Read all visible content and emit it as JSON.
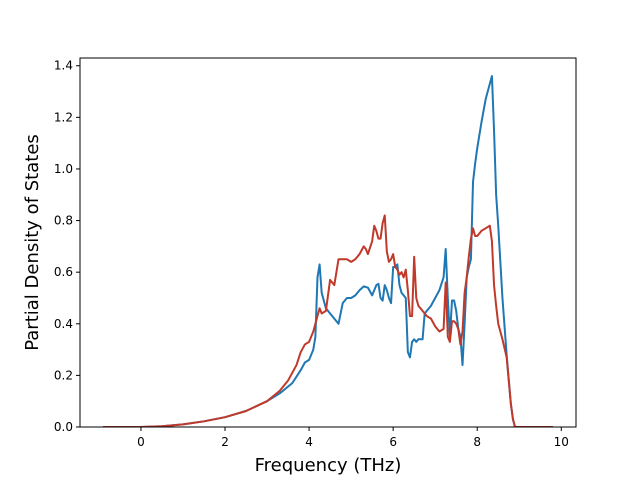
{
  "chart_data": {
    "type": "line",
    "title": "",
    "xlabel": "Frequency (THz)",
    "ylabel": "Partial Density of States",
    "xlim": [
      -1.45,
      10.35
    ],
    "ylim": [
      0.0,
      1.43
    ],
    "xticks": [
      0,
      2,
      4,
      6,
      8,
      10
    ],
    "yticks": [
      0.0,
      0.2,
      0.4,
      0.6,
      0.8,
      1.0,
      1.2,
      1.4
    ],
    "xtick_labels": [
      "0",
      "2",
      "4",
      "6",
      "8",
      "10"
    ],
    "ytick_labels": [
      "0.0",
      "0.2",
      "0.4",
      "0.6",
      "0.8",
      "1.0",
      "1.2",
      "1.4"
    ],
    "grid": false,
    "legend": "none",
    "series": [
      {
        "color": "#1f77b4",
        "x": [
          -0.9,
          0.0,
          0.5,
          1.0,
          1.5,
          2.0,
          2.5,
          3.0,
          3.3,
          3.6,
          3.8,
          3.9,
          4.0,
          4.1,
          4.15,
          4.2,
          4.25,
          4.3,
          4.4,
          4.5,
          4.6,
          4.7,
          4.8,
          4.9,
          5.0,
          5.1,
          5.2,
          5.3,
          5.4,
          5.5,
          5.6,
          5.65,
          5.7,
          5.75,
          5.8,
          5.85,
          5.9,
          5.95,
          6.0,
          6.05,
          6.1,
          6.15,
          6.2,
          6.25,
          6.3,
          6.35,
          6.4,
          6.45,
          6.5,
          6.55,
          6.6,
          6.7,
          6.75,
          6.8,
          6.9,
          7.0,
          7.1,
          7.2,
          7.25,
          7.3,
          7.35,
          7.4,
          7.45,
          7.5,
          7.55,
          7.6,
          7.65,
          7.7,
          7.75,
          7.8,
          7.85,
          7.9,
          7.95,
          8.0,
          8.1,
          8.2,
          8.3,
          8.35,
          8.4,
          8.45,
          8.5,
          8.6,
          8.7,
          8.8,
          8.85,
          8.9,
          8.95,
          9.0,
          9.5,
          9.8
        ],
        "y": [
          0.0,
          0.0,
          0.003,
          0.01,
          0.022,
          0.038,
          0.062,
          0.1,
          0.13,
          0.17,
          0.22,
          0.25,
          0.26,
          0.3,
          0.35,
          0.58,
          0.63,
          0.52,
          0.46,
          0.44,
          0.42,
          0.4,
          0.48,
          0.5,
          0.5,
          0.51,
          0.53,
          0.545,
          0.54,
          0.51,
          0.55,
          0.555,
          0.5,
          0.49,
          0.55,
          0.53,
          0.5,
          0.48,
          0.62,
          0.62,
          0.63,
          0.55,
          0.52,
          0.51,
          0.5,
          0.29,
          0.27,
          0.33,
          0.34,
          0.33,
          0.34,
          0.34,
          0.44,
          0.45,
          0.47,
          0.5,
          0.53,
          0.58,
          0.69,
          0.5,
          0.35,
          0.49,
          0.49,
          0.45,
          0.38,
          0.35,
          0.24,
          0.4,
          0.58,
          0.62,
          0.65,
          0.95,
          1.02,
          1.08,
          1.18,
          1.27,
          1.33,
          1.36,
          1.15,
          0.9,
          0.78,
          0.5,
          0.28,
          0.09,
          0.03,
          0.0,
          0.0,
          0.0,
          0.0,
          0.0
        ]
      },
      {
        "color": "#c0392b",
        "x": [
          -0.9,
          0.0,
          0.5,
          1.0,
          1.5,
          2.0,
          2.5,
          3.0,
          3.3,
          3.5,
          3.7,
          3.8,
          3.9,
          4.0,
          4.1,
          4.2,
          4.25,
          4.3,
          4.4,
          4.5,
          4.55,
          4.6,
          4.7,
          4.8,
          4.9,
          5.0,
          5.1,
          5.2,
          5.3,
          5.35,
          5.4,
          5.5,
          5.55,
          5.6,
          5.65,
          5.7,
          5.75,
          5.8,
          5.85,
          5.9,
          5.95,
          6.0,
          6.05,
          6.1,
          6.15,
          6.2,
          6.25,
          6.3,
          6.35,
          6.4,
          6.45,
          6.5,
          6.55,
          6.6,
          6.7,
          6.8,
          6.9,
          7.0,
          7.1,
          7.2,
          7.25,
          7.3,
          7.35,
          7.4,
          7.45,
          7.5,
          7.55,
          7.6,
          7.65,
          7.7,
          7.75,
          7.8,
          7.85,
          7.9,
          7.95,
          8.0,
          8.05,
          8.1,
          8.2,
          8.3,
          8.35,
          8.4,
          8.45,
          8.5,
          8.6,
          8.7,
          8.8,
          8.85,
          8.9,
          8.95,
          9.0,
          9.5,
          9.8
        ],
        "y": [
          0.0,
          0.0,
          0.003,
          0.01,
          0.022,
          0.038,
          0.062,
          0.1,
          0.14,
          0.18,
          0.24,
          0.29,
          0.32,
          0.33,
          0.37,
          0.43,
          0.46,
          0.44,
          0.45,
          0.57,
          0.56,
          0.55,
          0.65,
          0.65,
          0.65,
          0.64,
          0.65,
          0.67,
          0.7,
          0.69,
          0.67,
          0.72,
          0.78,
          0.76,
          0.73,
          0.73,
          0.79,
          0.82,
          0.68,
          0.64,
          0.65,
          0.67,
          0.62,
          0.61,
          0.59,
          0.6,
          0.58,
          0.61,
          0.53,
          0.43,
          0.43,
          0.66,
          0.5,
          0.47,
          0.45,
          0.43,
          0.42,
          0.39,
          0.37,
          0.38,
          0.56,
          0.35,
          0.33,
          0.41,
          0.41,
          0.4,
          0.38,
          0.32,
          0.37,
          0.52,
          0.58,
          0.66,
          0.73,
          0.77,
          0.74,
          0.74,
          0.75,
          0.76,
          0.77,
          0.78,
          0.72,
          0.55,
          0.47,
          0.4,
          0.34,
          0.27,
          0.09,
          0.03,
          0.0,
          0.0,
          0.0,
          0.0,
          0.0
        ]
      }
    ]
  }
}
